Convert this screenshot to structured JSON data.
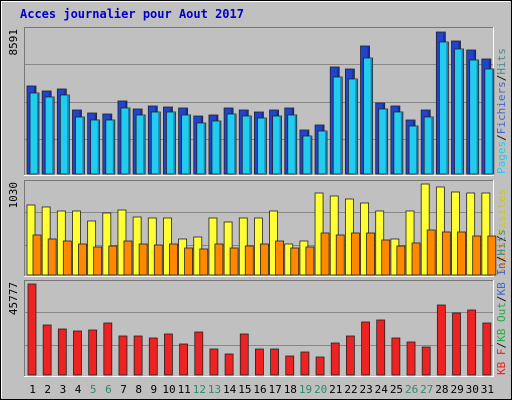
{
  "chart_data": {
    "type": "bar",
    "title": "Acces journalier pour Aout 2017",
    "categories": [
      "1",
      "2",
      "3",
      "4",
      "5",
      "6",
      "7",
      "8",
      "9",
      "10",
      "11",
      "12",
      "13",
      "14",
      "15",
      "16",
      "17",
      "18",
      "19",
      "20",
      "21",
      "22",
      "23",
      "24",
      "25",
      "26",
      "27",
      "28",
      "29",
      "30",
      "31"
    ],
    "weekend_days": [
      "5",
      "6",
      "12",
      "13",
      "19",
      "20",
      "26",
      "27"
    ],
    "panels": [
      {
        "name": "top",
        "max_label": "8591",
        "ylim": [
          0,
          8591
        ],
        "legend": [
          {
            "text": "Hits",
            "color": "#4a8f8a"
          },
          {
            "text": "/",
            "color": "#111111"
          },
          {
            "text": "Fichiers",
            "color": "#4466cc"
          },
          {
            "text": "/",
            "color": "#111111"
          },
          {
            "text": "Pages",
            "color": "#22ccee"
          }
        ],
        "series": [
          {
            "name": "Hits",
            "color": "#2244cc",
            "values": [
              5270,
              4960,
              5080,
              3820,
              3640,
              3600,
              4380,
              3900,
              4080,
              4040,
              3980,
              3460,
              3560,
              3960,
              3840,
              3720,
              3860,
              3960,
              2620,
              2960,
              6430,
              6300,
              7700,
              4260,
              4080,
              3260,
              3860,
              8530,
              8010,
              7420,
              6910
            ]
          },
          {
            "name": "Pages",
            "color": "#22ccee",
            "values": [
              4870,
              4630,
              4760,
              3420,
              3270,
              3240,
              3990,
              3520,
              3730,
              3700,
              3560,
              3080,
              3190,
              3580,
              3470,
              3360,
              3490,
              3570,
              2300,
              2600,
              5830,
              5690,
              6940,
              3880,
              3700,
              2870,
              3450,
              7940,
              7530,
              6840,
              6320
            ]
          }
        ]
      },
      {
        "name": "middle",
        "max_label": "1030",
        "ylim": [
          0,
          1030
        ],
        "legend": [
          {
            "text": "Visites",
            "color": "#cccc00"
          },
          {
            "text": "/",
            "color": "#111111"
          },
          {
            "text": "Sites",
            "color": "#ff8800"
          }
        ],
        "series": [
          {
            "name": "Visites",
            "color": "#ffff33",
            "values": [
              790,
              770,
              720,
              720,
              610,
              700,
              740,
              660,
              640,
              650,
              410,
              430,
              650,
              600,
              650,
              650,
              720,
              350,
              390,
              930,
              890,
              860,
              810,
              730,
              410,
              720,
              1030,
              1000,
              935,
              925,
              925
            ]
          },
          {
            "name": "Sites",
            "color": "#ff8800",
            "values": [
              450,
              410,
              380,
              350,
              320,
              330,
              380,
              350,
              340,
              350,
              300,
              290,
              350,
              300,
              330,
              350,
              380,
              300,
              320,
              470,
              450,
              470,
              470,
              400,
              330,
              360,
              510,
              490,
              490,
              440,
              440
            ]
          }
        ]
      },
      {
        "name": "bottom",
        "max_label": "45777",
        "ylim": [
          0,
          45777
        ],
        "legend": [
          {
            "text": "Hits",
            "color": "#4a8f8a"
          },
          {
            "text": "/",
            "color": "#111111"
          },
          {
            "text": "KB In",
            "color": "#4466cc"
          },
          {
            "text": "/",
            "color": "#111111"
          },
          {
            "text": "KB Out",
            "color": "#22aa44"
          },
          {
            "text": "/",
            "color": "#111111"
          },
          {
            "text": "KB F",
            "color": "#ee2222"
          }
        ],
        "series": [
          {
            "name": "KB F",
            "color": "#ee2222",
            "values": [
              45777,
              25100,
              23000,
              22300,
              22700,
              26400,
              19700,
              19700,
              18700,
              20800,
              15800,
              21500,
              13300,
              10600,
              20800,
              13100,
              13100,
              9600,
              11800,
              9100,
              16300,
              19400,
              26500,
              27800,
              18800,
              16800,
              14000,
              35300,
              31200,
              32900,
              26300
            ]
          }
        ]
      }
    ]
  }
}
